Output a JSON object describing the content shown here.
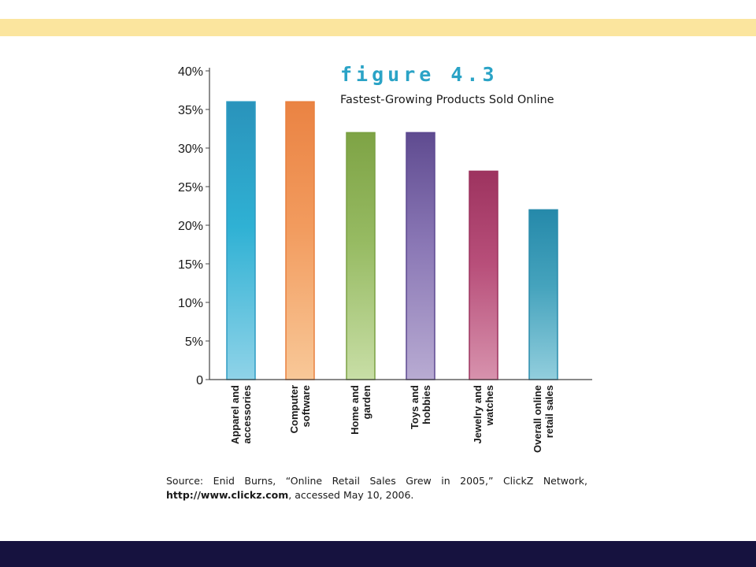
{
  "figure_label": "figure 4.3",
  "source": {
    "text": "Source: Enid Burns, “Online Retail Sales Grew in 2005,” ClickZ Network,",
    "url": "http://www.clickz.com",
    "suffix": ", accessed May 10, 2006."
  },
  "colors": {
    "top_band": "#fbe59e",
    "bottom_band": "#16123f",
    "figure_label": "#2aa3c6"
  },
  "chart_data": {
    "type": "bar",
    "title": "Fastest-Growing Products Sold Online",
    "categories": [
      [
        "Apparel and",
        "accessories"
      ],
      [
        "Computer",
        "software"
      ],
      [
        "Home and",
        "garden"
      ],
      [
        "Toys and",
        "hobbies"
      ],
      [
        "Jewelry and",
        "watches"
      ],
      [
        "Overall online",
        "retail sales"
      ]
    ],
    "values": [
      36,
      36,
      32,
      32,
      27,
      22
    ],
    "bar_gradients": [
      [
        "#2a93bb",
        "#2fb1d4",
        "#8fd3e8"
      ],
      [
        "#ea8343",
        "#f29b5e",
        "#f8c898"
      ],
      [
        "#7ea345",
        "#97bb63",
        "#c8dea6"
      ],
      [
        "#5f4b90",
        "#8a77b5",
        "#b8abd2"
      ],
      [
        "#9d335f",
        "#b84f7a",
        "#d792ad"
      ],
      [
        "#2589aa",
        "#45a3bd",
        "#92cedd"
      ]
    ],
    "bar_strokes": [
      "#2e9bc3",
      "#e9803f",
      "#7aa043",
      "#5d4990",
      "#9c335e",
      "#2a8cac"
    ],
    "yticks": [
      "0",
      "5%",
      "10%",
      "15%",
      "20%",
      "25%",
      "30%",
      "35%",
      "40%"
    ],
    "ylim": [
      0,
      40
    ],
    "xlabel": "",
    "ylabel": "",
    "grid": false
  }
}
